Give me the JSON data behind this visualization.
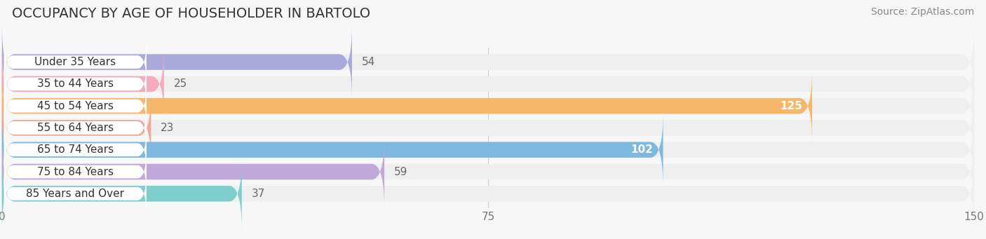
{
  "title": "OCCUPANCY BY AGE OF HOUSEHOLDER IN BARTOLO",
  "source": "Source: ZipAtlas.com",
  "categories": [
    "Under 35 Years",
    "35 to 44 Years",
    "45 to 54 Years",
    "55 to 64 Years",
    "65 to 74 Years",
    "75 to 84 Years",
    "85 Years and Over"
  ],
  "values": [
    54,
    25,
    125,
    23,
    102,
    59,
    37
  ],
  "bar_colors": [
    "#aaaadd",
    "#f5aac0",
    "#f5b86a",
    "#f0a898",
    "#7eb8de",
    "#c0a8d8",
    "#7ecece"
  ],
  "bar_bg_color": "#efefef",
  "bg_color": "#f7f7f7",
  "xlim_max": 150,
  "xticks": [
    0,
    75,
    150
  ],
  "value_label_color_inside": "#ffffff",
  "value_label_color_outside": "#666666",
  "inside_threshold": 80,
  "title_fontsize": 14,
  "source_fontsize": 10,
  "label_fontsize": 11,
  "value_fontsize": 11,
  "bar_height": 0.72,
  "bar_gap": 0.28,
  "figsize": [
    14.06,
    3.41
  ],
  "dpi": 100
}
